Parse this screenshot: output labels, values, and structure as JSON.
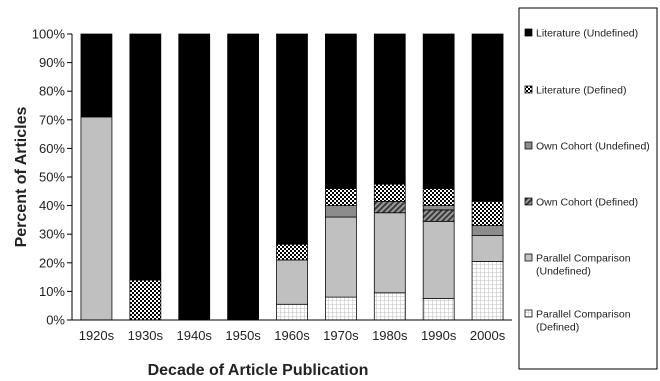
{
  "chart_data": {
    "type": "bar",
    "stacked": true,
    "categories": [
      "1920s",
      "1930s",
      "1940s",
      "1950s",
      "1960s",
      "1970s",
      "1980s",
      "1990s",
      "2000s"
    ],
    "xlabel": "Decade of Article Publication",
    "ylabel": "Percent of Articles",
    "ylim": [
      0,
      100
    ],
    "yticks": [
      "0%",
      "10%",
      "20%",
      "30%",
      "40%",
      "50%",
      "60%",
      "70%",
      "80%",
      "90%",
      "100%"
    ],
    "legend_position": "right",
    "series": [
      {
        "name": "Parallel Comparison (Defined)",
        "label_lines": [
          "Parallel Comparison",
          "(Defined)"
        ],
        "pattern": "dotted-grid",
        "values": [
          0,
          0,
          0,
          0,
          5.5,
          8,
          9.5,
          7.5,
          20.5
        ]
      },
      {
        "name": "Parallel Comparison (Undefined)",
        "label_lines": [
          "Parallel Comparison",
          "(Undefined)"
        ],
        "pattern": "light-gray",
        "values": [
          71,
          0,
          0,
          0,
          15.5,
          28,
          28,
          27,
          9
        ]
      },
      {
        "name": "Own Cohort (Defined)",
        "label_lines": [
          "Own Cohort (Defined)"
        ],
        "pattern": "diagonal-hatch",
        "values": [
          0,
          0,
          0,
          0,
          0,
          0,
          4,
          4,
          0
        ]
      },
      {
        "name": "Own Cohort (Undefined)",
        "label_lines": [
          "Own Cohort (Undefined)"
        ],
        "pattern": "mid-gray",
        "values": [
          0,
          0,
          0,
          0,
          0,
          4,
          0,
          1.5,
          3.5
        ]
      },
      {
        "name": "Literature (Defined)",
        "label_lines": [
          "Literature (Defined)"
        ],
        "pattern": "checker",
        "values": [
          0,
          14,
          0,
          0,
          5.5,
          6,
          6,
          6,
          8.5
        ]
      },
      {
        "name": "Literature (Undefined)",
        "label_lines": [
          "Literature (Undefined)"
        ],
        "pattern": "black",
        "values": [
          29,
          86,
          100,
          100,
          73.5,
          54,
          52.5,
          54,
          58.5
        ]
      }
    ],
    "colors": {
      "black": "#000000",
      "light_gray": "#c0c0c0",
      "mid_gray": "#8c8c8c",
      "dark_gray": "#555555",
      "white": "#ffffff"
    }
  }
}
